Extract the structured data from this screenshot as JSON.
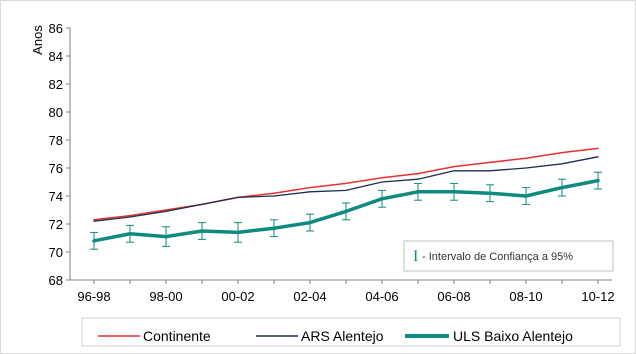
{
  "chart_data": {
    "type": "line",
    "ylabel": "Anos",
    "ylim": [
      68,
      86
    ],
    "yticks": [
      68,
      70,
      72,
      74,
      76,
      78,
      80,
      82,
      84,
      86
    ],
    "x_tick_labels": [
      "96-98",
      "98-00",
      "00-02",
      "02-04",
      "04-06",
      "06-08",
      "08-10",
      "10-12"
    ],
    "x": [
      "96-98",
      "97-99",
      "98-00",
      "99-01",
      "00-02",
      "01-03",
      "02-04",
      "03-05",
      "04-06",
      "05-07",
      "06-08",
      "07-09",
      "08-10",
      "09-11",
      "10-12"
    ],
    "series": [
      {
        "name": "Continente",
        "color": "#e8312f",
        "values": [
          72.3,
          72.6,
          73.0,
          73.4,
          73.9,
          74.2,
          74.6,
          74.9,
          75.3,
          75.6,
          76.1,
          76.4,
          76.7,
          77.1,
          77.4
        ]
      },
      {
        "name": "ARS Alentejo",
        "color": "#1f2d50",
        "values": [
          72.2,
          72.5,
          72.9,
          73.4,
          73.9,
          74.0,
          74.3,
          74.4,
          75.0,
          75.2,
          75.8,
          75.8,
          76.0,
          76.3,
          76.8
        ]
      },
      {
        "name": "ULS Baixo Alentejo",
        "color": "#0f8a80",
        "values": [
          70.8,
          71.3,
          71.1,
          71.5,
          71.4,
          71.7,
          72.1,
          72.9,
          73.8,
          74.3,
          74.3,
          74.2,
          74.0,
          74.6,
          75.1
        ],
        "ci_lower": [
          70.2,
          70.7,
          70.4,
          70.9,
          70.7,
          71.1,
          71.5,
          72.3,
          73.2,
          73.7,
          73.7,
          73.6,
          73.4,
          74.0,
          74.5
        ],
        "ci_upper": [
          71.4,
          71.9,
          71.8,
          72.1,
          72.1,
          72.3,
          72.7,
          73.5,
          74.4,
          74.9,
          74.9,
          74.8,
          74.6,
          75.2,
          75.7
        ]
      }
    ],
    "ci_legend": {
      "glyph": "I",
      "text": " - Intervalo de Confiança a 95%"
    },
    "grid": false,
    "legend_position": "bottom"
  }
}
